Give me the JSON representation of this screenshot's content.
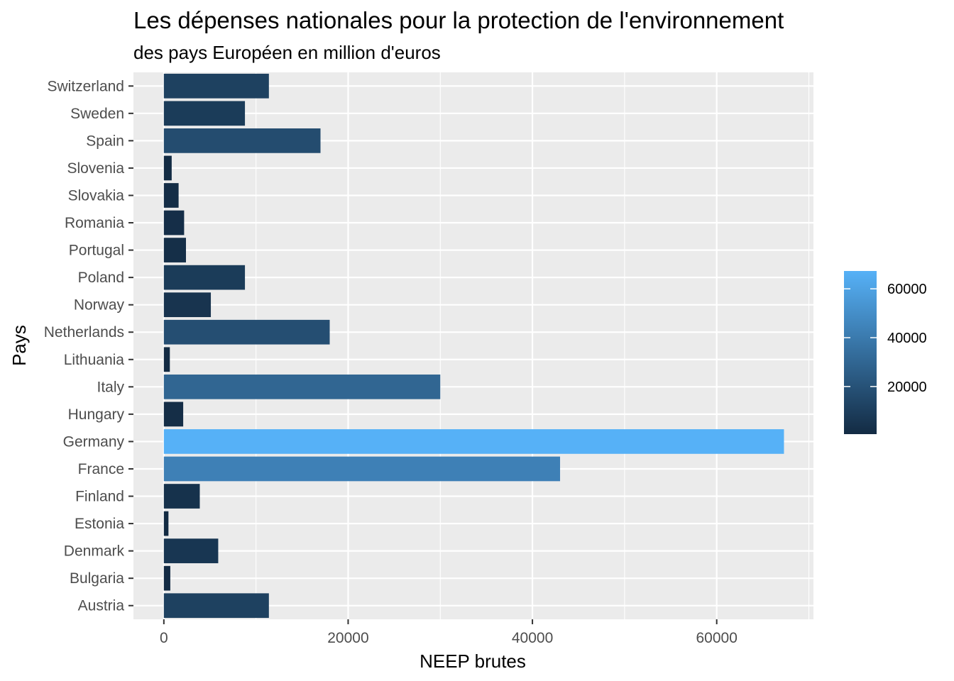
{
  "chart_data": {
    "type": "bar",
    "orientation": "horizontal",
    "title": "Les dépenses nationales pour la protection de l'environnement",
    "subtitle": "des pays Européen en million d'euros",
    "xlabel": "NEEP brutes",
    "ylabel": "Pays",
    "xlim": [
      -3300,
      70500
    ],
    "x_ticks": [
      0,
      20000,
      40000,
      60000
    ],
    "x_tick_labels": [
      "0",
      "20000",
      "40000",
      "60000"
    ],
    "grid": true,
    "categories": [
      "Austria",
      "Bulgaria",
      "Denmark",
      "Estonia",
      "Finland",
      "France",
      "Germany",
      "Hungary",
      "Italy",
      "Lithuania",
      "Netherlands",
      "Norway",
      "Poland",
      "Portugal",
      "Romania",
      "Slovakia",
      "Slovenia",
      "Spain",
      "Sweden",
      "Switzerland"
    ],
    "values": [
      11400,
      700,
      5900,
      500,
      3900,
      43000,
      67300,
      2100,
      30000,
      650,
      18000,
      5100,
      8800,
      2400,
      2200,
      1600,
      850,
      17000,
      8800,
      11400
    ],
    "legend": {
      "type": "colorbar",
      "position": "right",
      "min": 500,
      "max": 67300,
      "ticks": [
        20000,
        40000,
        60000
      ],
      "tick_labels": [
        "20000",
        "40000",
        "60000"
      ],
      "color_low": "#132B43",
      "color_high": "#56B1F7"
    },
    "colors": {
      "panel_background": "#EBEBEB",
      "grid_major": "#FFFFFF"
    }
  }
}
